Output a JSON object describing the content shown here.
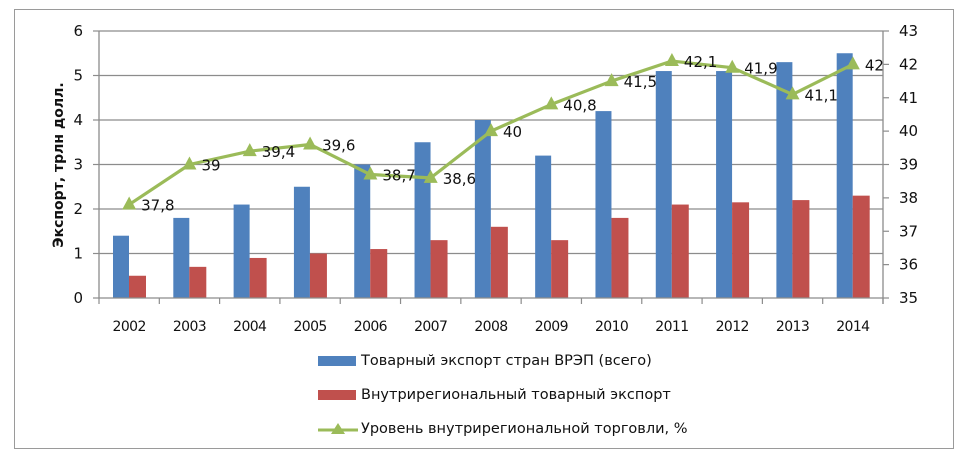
{
  "chart_data": {
    "type": "bar",
    "combo": true,
    "title": "",
    "xlabel": "",
    "ylabel": "Экспорт, трлн долл.",
    "y2label": "",
    "categories": [
      "2002",
      "2003",
      "2004",
      "2005",
      "2006",
      "2007",
      "2008",
      "2009",
      "2010",
      "2011",
      "2012",
      "2013",
      "2014"
    ],
    "ylim": [
      0,
      6
    ],
    "yticks": [
      0,
      1,
      2,
      3,
      4,
      5,
      6
    ],
    "y2lim": [
      35,
      43
    ],
    "y2ticks": [
      35,
      36,
      37,
      38,
      39,
      40,
      41,
      42,
      43
    ],
    "grid": true,
    "legend_position": "bottom",
    "series": [
      {
        "name": "Товарный экспорт стран ВРЭП (всего)",
        "type": "bar",
        "axis": "left",
        "color": "#4F81BD",
        "values": [
          1.4,
          1.8,
          2.1,
          2.5,
          3.0,
          3.5,
          4.0,
          3.2,
          4.2,
          5.1,
          5.1,
          5.3,
          5.5
        ]
      },
      {
        "name": "Внутрирегиональный товарный экспорт",
        "type": "bar",
        "axis": "left",
        "color": "#C0504D",
        "values": [
          0.5,
          0.7,
          0.9,
          1.0,
          1.1,
          1.3,
          1.6,
          1.3,
          1.8,
          2.1,
          2.15,
          2.2,
          2.3
        ]
      },
      {
        "name": "Уровень внутрирегиональной торговли, %",
        "type": "line",
        "axis": "right",
        "color": "#9BBB59",
        "marker": "triangle",
        "values": [
          37.8,
          39,
          39.4,
          39.6,
          38.7,
          38.6,
          40,
          40.8,
          41.5,
          42.1,
          41.9,
          41.1,
          42
        ],
        "data_labels": [
          "37,8",
          "39",
          "39,4",
          "39,6",
          "38,7",
          "38,6",
          "40",
          "40,8",
          "41,5",
          "42,1",
          "41,9",
          "41,1",
          "42"
        ]
      }
    ]
  },
  "legend": {
    "items": [
      {
        "label": "Товарный экспорт стран ВРЭП (всего)",
        "icon": "blue-bar-swatch"
      },
      {
        "label": "Внутрирегиональный товарный экспорт",
        "icon": "red-bar-swatch"
      },
      {
        "label": "Уровень внутрирегиональной торговли, %",
        "icon": "green-line-triangle-marker"
      }
    ]
  }
}
